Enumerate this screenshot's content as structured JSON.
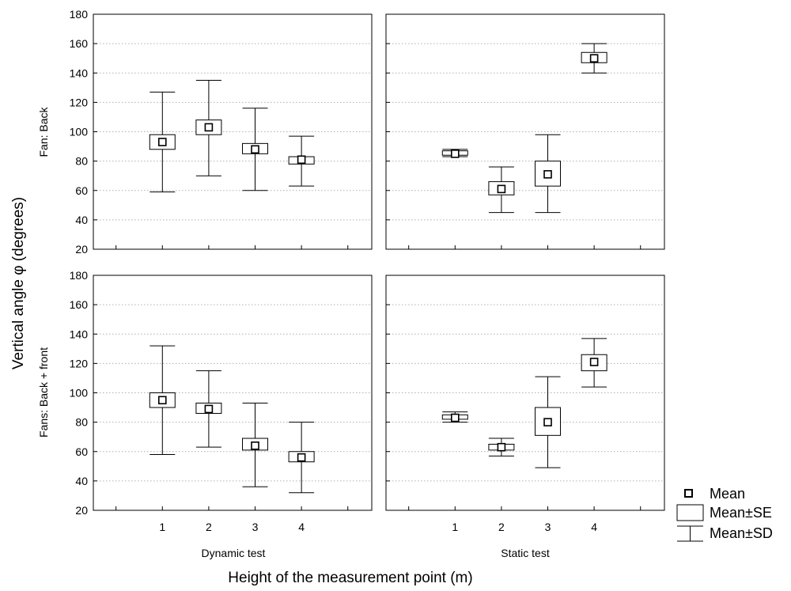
{
  "chart_data": {
    "type": "box",
    "ylabel": "Vertical angle φ (degrees)",
    "xlabel": "Height of the measurement point (m)",
    "ylim": [
      20,
      180
    ],
    "yticks": [
      20,
      40,
      60,
      80,
      100,
      120,
      140,
      160,
      180
    ],
    "categories": [
      "1",
      "2",
      "3",
      "4"
    ],
    "grid": "dotted horizontal",
    "columns": [
      "Dynamic test",
      "Static test"
    ],
    "rows": [
      "Fan: Back",
      "Fans: Back + front"
    ],
    "legend": {
      "placement": "bottom-right",
      "items": [
        "Mean",
        "Mean±SE",
        "Mean±SD"
      ]
    },
    "panels": [
      {
        "row": 0,
        "col": 0,
        "mean": [
          93,
          103,
          88,
          81
        ],
        "se_low": [
          88,
          98,
          85,
          78
        ],
        "se_high": [
          98,
          108,
          92,
          83
        ],
        "sd_low": [
          59,
          70,
          60,
          63
        ],
        "sd_high": [
          127,
          135,
          116,
          97
        ]
      },
      {
        "row": 0,
        "col": 1,
        "mean": [
          85,
          61,
          71,
          150
        ],
        "se_low": [
          84,
          57,
          63,
          147
        ],
        "se_high": [
          87,
          66,
          80,
          154
        ],
        "sd_low": [
          83,
          45,
          45,
          140
        ],
        "sd_high": [
          88,
          76,
          98,
          160
        ]
      },
      {
        "row": 1,
        "col": 0,
        "mean": [
          95,
          89,
          64,
          56
        ],
        "se_low": [
          90,
          86,
          61,
          53
        ],
        "se_high": [
          100,
          93,
          69,
          60
        ],
        "sd_low": [
          58,
          63,
          36,
          32
        ],
        "sd_high": [
          132,
          115,
          93,
          80
        ]
      },
      {
        "row": 1,
        "col": 1,
        "mean": [
          83,
          63,
          80,
          121
        ],
        "se_low": [
          82,
          61,
          71,
          115
        ],
        "se_high": [
          85,
          65,
          90,
          126
        ],
        "sd_low": [
          80,
          57,
          49,
          104
        ],
        "sd_high": [
          87,
          69,
          111,
          137
        ]
      }
    ]
  }
}
